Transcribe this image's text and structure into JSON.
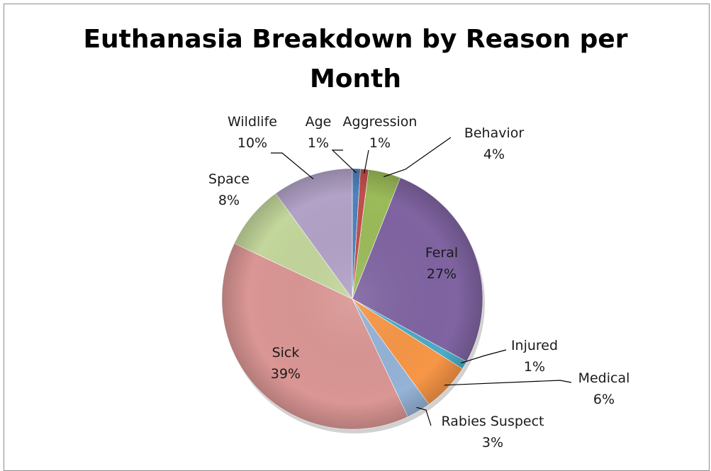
{
  "chart_data": {
    "type": "pie",
    "title": "Euthanasia Breakdown by Reason per Month",
    "title_lines": [
      "Euthanasia Breakdown by Reason per",
      "Month"
    ],
    "slices": [
      {
        "label": "Age",
        "value": 1,
        "percent_label": "1%",
        "color": "#4f81bd"
      },
      {
        "label": "Aggression",
        "value": 1,
        "percent_label": "1%",
        "color": "#c0504d"
      },
      {
        "label": "Behavior",
        "value": 4,
        "percent_label": "4%",
        "color": "#9bbb59"
      },
      {
        "label": "Feral",
        "value": 27,
        "percent_label": "27%",
        "color": "#8064a2"
      },
      {
        "label": "Injured",
        "value": 1,
        "percent_label": "1%",
        "color": "#4bacc6"
      },
      {
        "label": "Medical",
        "value": 6,
        "percent_label": "6%",
        "color": "#f79646"
      },
      {
        "label": "Rabies Suspect",
        "value": 3,
        "percent_label": "3%",
        "color": "#95b3d7"
      },
      {
        "label": "Sick",
        "value": 39,
        "percent_label": "39%",
        "color": "#da9694"
      },
      {
        "label": "Space",
        "value": 8,
        "percent_label": "8%",
        "color": "#c3d69b"
      },
      {
        "label": "Wildlife",
        "value": 10,
        "percent_label": "10%",
        "color": "#b2a2c7"
      }
    ]
  }
}
